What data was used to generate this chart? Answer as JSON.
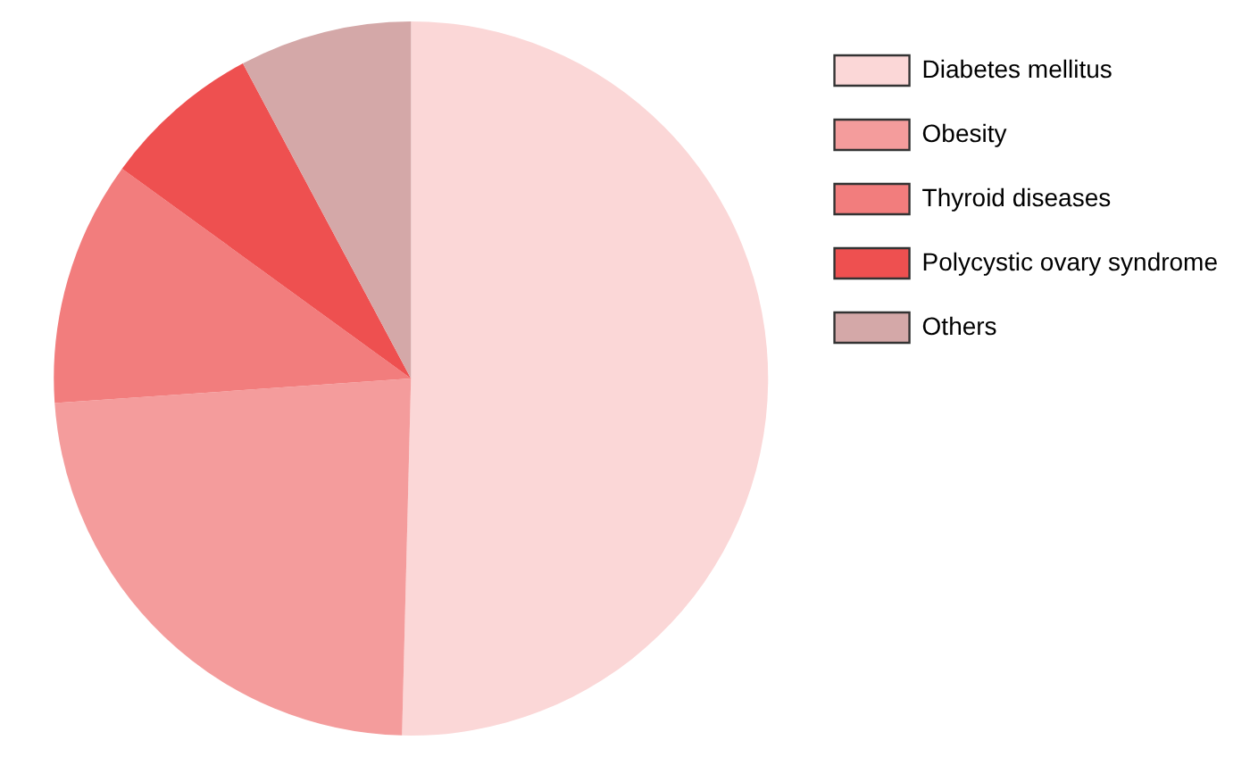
{
  "chart_data": {
    "type": "pie",
    "categories": [
      "Diabetes mellitus",
      "Obesity",
      "Thyroid diseases",
      "Polycystic ovary syndrome",
      "Others"
    ],
    "values": [
      50.4,
      23.5,
      11.1,
      7.2,
      7.8
    ],
    "colors": [
      "#fbd7d7",
      "#f49c9c",
      "#f27d7d",
      "#ee5050",
      "#d4a8a8"
    ],
    "legend": "right"
  }
}
